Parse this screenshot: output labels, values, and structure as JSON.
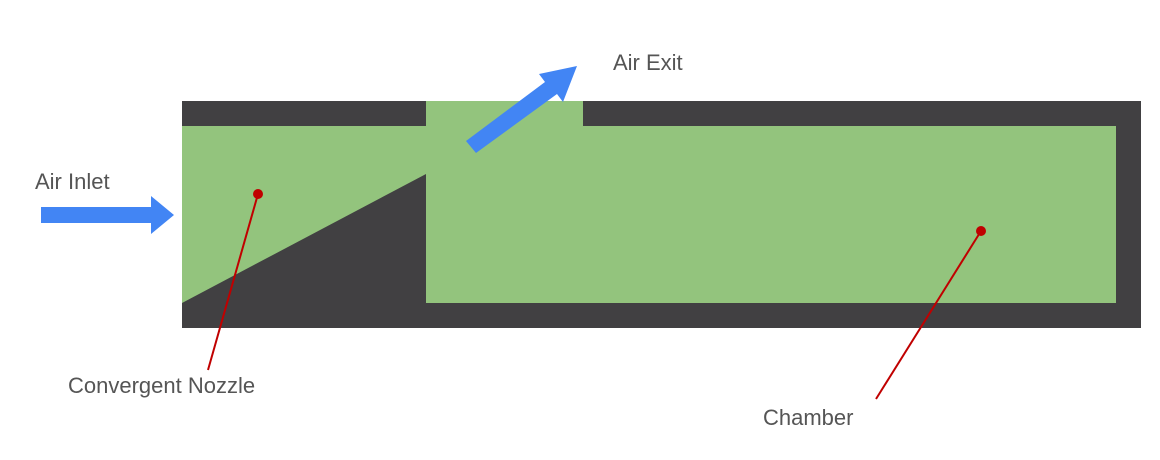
{
  "labels": {
    "air_inlet": "Air Inlet",
    "air_exit": "Air Exit",
    "convergent_nozzle": "Convergent Nozzle",
    "chamber": "Chamber"
  },
  "colors": {
    "wall": "#414042",
    "air": "#93c47d",
    "arrow": "#4285f4",
    "leader_line": "#c00000",
    "label_text": "#555555",
    "background": "#ffffff"
  }
}
